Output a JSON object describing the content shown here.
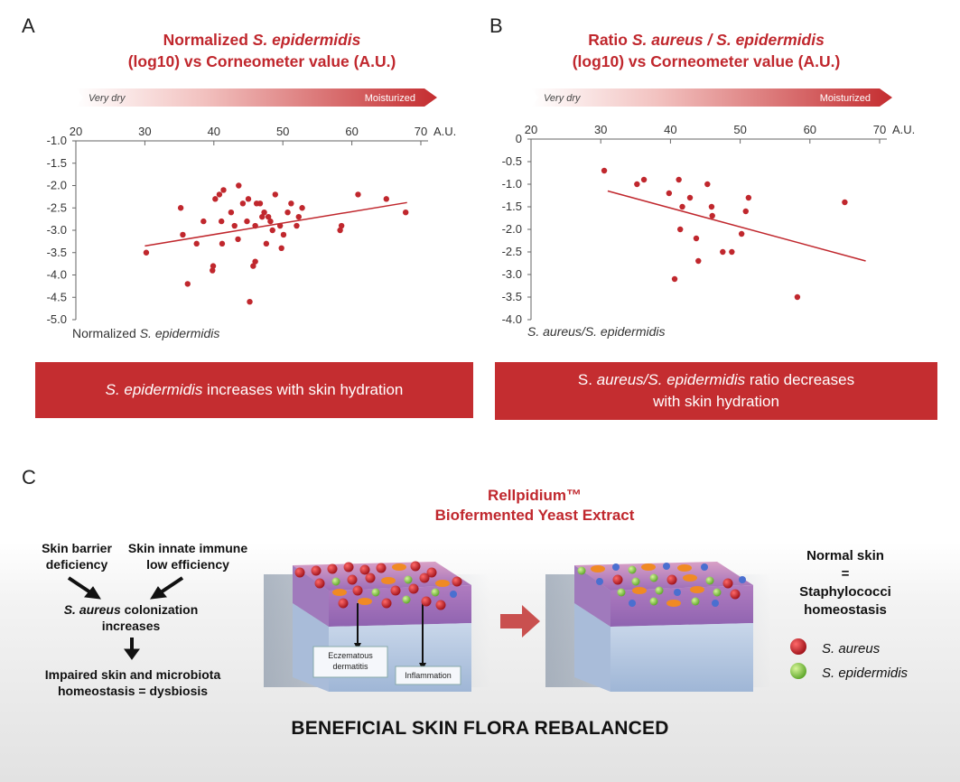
{
  "panel_labels": {
    "a": "A",
    "b": "B",
    "c": "C"
  },
  "colors": {
    "accent": "#c42d30",
    "point": "#c0272d",
    "title": "#c0272d"
  },
  "gradient_bar": {
    "left_label": "Very dry",
    "right_label": "Moisturized"
  },
  "chart_a": {
    "title_line1_a": "Normalized ",
    "title_line1_b": "S. epidermidis",
    "title_line2": "(log10) vs Corneometer value (A.U.)",
    "banner_italic": "S. epidermidis",
    "banner_rest": " increases with skin hydration"
  },
  "chart_b": {
    "title_line1_a": "Ratio ",
    "title_line1_b": "S. aureus / S. epidermidis",
    "title_line2": "(log10) vs Corneometer value (A.U.)",
    "banner_line1_a": "S. ",
    "banner_line1_b": "aureus/S. epidermidis",
    "banner_line1_c": " ratio decreases",
    "banner_line2": "with skin hydration"
  },
  "chart_data": [
    {
      "type": "scatter",
      "xlim": [
        20,
        70
      ],
      "ylim": [
        -5.0,
        -1.0
      ],
      "xticks": [
        "20",
        "30",
        "40",
        "50",
        "60",
        "70"
      ],
      "yticks": [
        "-1.0",
        "-1.5",
        "-2.0",
        "-2.5",
        "-3.0",
        "-3.5",
        "-4.0",
        "-4.5",
        "-5.0"
      ],
      "xunit": "A.U.",
      "ylabel_a": "Normalized ",
      "ylabel_b": "S. epidermidis",
      "points": [
        [
          30.2,
          -3.5
        ],
        [
          35.2,
          -2.5
        ],
        [
          35.5,
          -3.1
        ],
        [
          36.2,
          -4.2
        ],
        [
          37.5,
          -3.3
        ],
        [
          38.5,
          -2.8
        ],
        [
          39.8,
          -3.9
        ],
        [
          39.9,
          -3.8
        ],
        [
          40.2,
          -2.3
        ],
        [
          40.8,
          -2.2
        ],
        [
          41.1,
          -2.8
        ],
        [
          41.2,
          -3.3
        ],
        [
          41.4,
          -2.1
        ],
        [
          42.5,
          -2.6
        ],
        [
          43.0,
          -2.9
        ],
        [
          43.5,
          -3.2
        ],
        [
          43.6,
          -2.0
        ],
        [
          44.2,
          -2.4
        ],
        [
          44.8,
          -2.8
        ],
        [
          45.0,
          -2.3
        ],
        [
          45.2,
          -4.6
        ],
        [
          45.7,
          -3.8
        ],
        [
          46.0,
          -3.7
        ],
        [
          46.0,
          -2.9
        ],
        [
          46.2,
          -2.4
        ],
        [
          46.7,
          -2.4
        ],
        [
          47.0,
          -2.7
        ],
        [
          47.3,
          -2.6
        ],
        [
          47.6,
          -3.3
        ],
        [
          47.9,
          -2.7
        ],
        [
          48.2,
          -2.8
        ],
        [
          48.5,
          -3.0
        ],
        [
          48.9,
          -2.2
        ],
        [
          49.6,
          -2.9
        ],
        [
          49.8,
          -3.4
        ],
        [
          50.1,
          -3.1
        ],
        [
          50.7,
          -2.6
        ],
        [
          51.2,
          -2.4
        ],
        [
          52.0,
          -2.9
        ],
        [
          52.3,
          -2.7
        ],
        [
          52.8,
          -2.5
        ],
        [
          58.3,
          -3.0
        ],
        [
          58.5,
          -2.9
        ],
        [
          60.9,
          -2.2
        ],
        [
          65.0,
          -2.3
        ],
        [
          67.8,
          -2.6
        ]
      ],
      "trend": {
        "x": [
          30,
          68
        ],
        "y": [
          -3.35,
          -2.38
        ]
      }
    },
    {
      "type": "scatter",
      "xlim": [
        20,
        70
      ],
      "ylim": [
        -4.0,
        0
      ],
      "xticks": [
        "20",
        "30",
        "40",
        "50",
        "60",
        "70"
      ],
      "yticks": [
        "0",
        "-0.5",
        "-1.0",
        "-1.5",
        "-2.0",
        "-2.5",
        "-3.0",
        "-3.5",
        "-4.0"
      ],
      "xunit": "A.U.",
      "ylabel": "S. aureus/S. epidermidis",
      "points": [
        [
          30.5,
          -0.7
        ],
        [
          35.2,
          -1.0
        ],
        [
          36.2,
          -0.9
        ],
        [
          39.8,
          -1.2
        ],
        [
          40.6,
          -3.1
        ],
        [
          41.2,
          -0.9
        ],
        [
          41.4,
          -2.0
        ],
        [
          41.7,
          -1.5
        ],
        [
          42.8,
          -1.3
        ],
        [
          43.7,
          -2.2
        ],
        [
          44.0,
          -2.7
        ],
        [
          45.3,
          -1.0
        ],
        [
          45.9,
          -1.5
        ],
        [
          46.0,
          -1.7
        ],
        [
          47.5,
          -2.5
        ],
        [
          48.8,
          -2.5
        ],
        [
          50.2,
          -2.1
        ],
        [
          50.8,
          -1.6
        ],
        [
          51.2,
          -1.3
        ],
        [
          58.2,
          -3.5
        ],
        [
          65.0,
          -1.4
        ]
      ],
      "trend": {
        "x": [
          31,
          68
        ],
        "y": [
          -1.15,
          -2.7
        ]
      }
    }
  ],
  "panel_c": {
    "node_barrier": "Skin barrier\ndeficiency",
    "node_immune": "Skin innate immune\nlow efficiency",
    "node_colonization_a": "S. aureus",
    "node_colonization_b": " colonization",
    "node_colonization_c": "increases",
    "node_impaired": "Impaired skin and microbiota\nhomeostasis  =  dysbiosis",
    "product_line1": "Rellpidium™",
    "product_line2": "Biofermented Yeast Extract",
    "label_eczema": "Eczematous\ndermatitis",
    "label_inflammation": "Inflammation",
    "normal_line1": "Normal skin",
    "normal_line2": "=",
    "normal_line3": "Staphylococci",
    "normal_line4": "homeostasis",
    "legend_aureus": "S. aureus",
    "legend_epidermidis": "S. epidermidis",
    "footer": "BENEFICIAL SKIN FLORA REBALANCED"
  }
}
